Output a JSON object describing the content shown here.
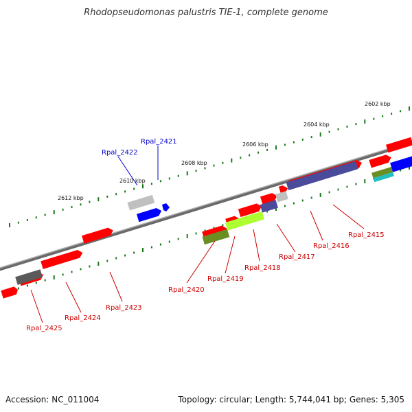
{
  "title": "Rhodopseudomonas palustris TIE-1, complete genome",
  "footer": {
    "accession": "Accession: NC_011004",
    "summary": "Topology: circular; Length: 5,744,041 bp; Genes: 5,305"
  },
  "colors": {
    "backbone": "#808080",
    "ticks": "#1a7a1a",
    "label_red": "#cc0000",
    "label_blue": "#0000cc",
    "gene_red": "#ff0000",
    "gene_blue": "#0000ff",
    "gene_navy": "#4b4b9b",
    "gene_olive": "#6b8e23",
    "gene_lime": "#adff2f",
    "gene_lightgray": "#c0c0c0",
    "gene_darkgray": "#5a5a5a",
    "gene_cyan": "#20c0c0"
  },
  "kbp_labels": [
    {
      "text": "2602 kbp"
    },
    {
      "text": "2604 kbp"
    },
    {
      "text": "2606 kbp"
    },
    {
      "text": "2608 kbp"
    },
    {
      "text": "2610 kbp"
    },
    {
      "text": "2612 kbp"
    }
  ],
  "gene_labels": [
    {
      "text": "Rpal_2415",
      "color": "red"
    },
    {
      "text": "Rpal_2416",
      "color": "red"
    },
    {
      "text": "Rpal_2417",
      "color": "red"
    },
    {
      "text": "Rpal_2418",
      "color": "red"
    },
    {
      "text": "Rpal_2419",
      "color": "red"
    },
    {
      "text": "Rpal_2420",
      "color": "red"
    },
    {
      "text": "Rpal_2421",
      "color": "blue"
    },
    {
      "text": "Rpal_2422",
      "color": "blue"
    },
    {
      "text": "Rpal_2423",
      "color": "red"
    },
    {
      "text": "Rpal_2424",
      "color": "red"
    },
    {
      "text": "Rpal_2425",
      "color": "red"
    }
  ]
}
